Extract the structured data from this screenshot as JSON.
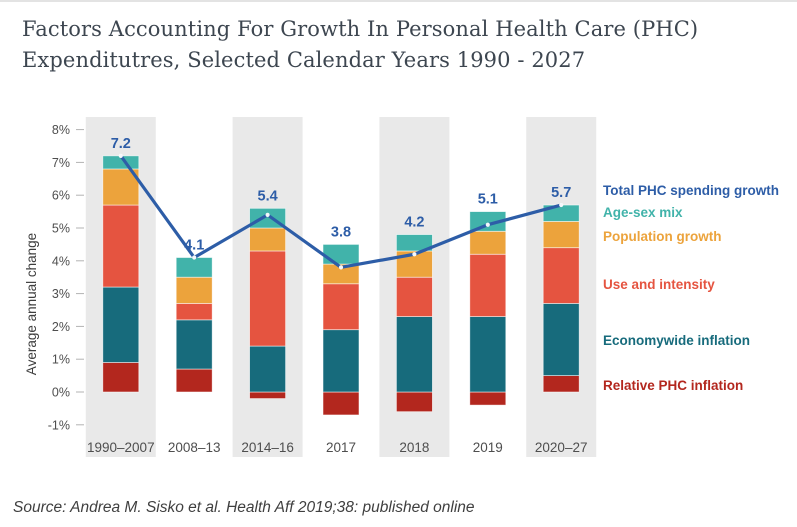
{
  "page": {
    "title_line1": "Factors Accounting For Growth In Personal Health Care (PHC)",
    "title_line2": "Expenditutres, Selected Calendar Years 1990 - 2027",
    "source": "Source: Andrea M. Sisko et al. Health Aff 2019;38: published online"
  },
  "colors": {
    "accent_blue": "#2d5da7",
    "age_sex_teal": "#41b3aa",
    "population_orange": "#eca33c",
    "use_intensity_red": "#e55440",
    "economywide_teal": "#176b7c",
    "relative_phc_red": "#b3271e",
    "column_band_gray": "#e9e9e9",
    "title_text": "#3d4650",
    "axis_text": "#4e4e4e",
    "source_text": "#3f3f3f"
  },
  "chart_data": {
    "type": "bar",
    "subtype": "stacked-bars-with-total-line",
    "title": "Factors Accounting For Growth In Personal Health Care (PHC) Expenditutres, Selected Calendar Years 1990 - 2027",
    "xlabel": "",
    "ylabel": "Average annual change",
    "y_ticks": [
      "8%",
      "7%",
      "6%",
      "5%",
      "4%",
      "3%",
      "2%",
      "1%",
      "0%",
      "-1%"
    ],
    "ylim": [
      -1.5,
      8.4
    ],
    "grid": false,
    "legend_position": "right",
    "shaded_columns": [
      0,
      2,
      4,
      6
    ],
    "categories": [
      "1990–2007",
      "2008–13",
      "2014–16",
      "2017",
      "2018",
      "2019",
      "2020–27"
    ],
    "series": [
      {
        "name": "Relative PHC inflation",
        "color": "#b3271e",
        "values": [
          0.9,
          0.7,
          -0.2,
          -0.7,
          -0.6,
          -0.4,
          0.5
        ]
      },
      {
        "name": "Economywide inflation",
        "color": "#176b7c",
        "values": [
          2.3,
          1.5,
          1.4,
          1.9,
          2.3,
          2.3,
          2.2
        ]
      },
      {
        "name": "Use and intensity",
        "color": "#e55440",
        "values": [
          2.5,
          0.5,
          2.9,
          1.4,
          1.2,
          1.9,
          1.7
        ]
      },
      {
        "name": "Population growth",
        "color": "#eca33c",
        "values": [
          1.1,
          0.8,
          0.7,
          0.6,
          0.8,
          0.7,
          0.8
        ]
      },
      {
        "name": "Age-sex mix",
        "color": "#41b3aa",
        "values": [
          0.4,
          0.6,
          0.6,
          0.6,
          0.5,
          0.6,
          0.5
        ]
      }
    ],
    "line_series": {
      "name": "Total PHC spending growth",
      "color": "#2d5da7",
      "values": [
        7.2,
        4.1,
        5.4,
        3.8,
        4.2,
        5.1,
        5.7
      ]
    }
  },
  "legend": {
    "items": [
      {
        "label": "Total PHC spending growth",
        "color": "#2d5da7"
      },
      {
        "label": "Age-sex mix",
        "color": "#41b3aa"
      },
      {
        "label": "Population growth",
        "color": "#eca33c"
      },
      {
        "label": "Use and intensity",
        "color": "#e55440"
      },
      {
        "label": "Economywide inflation",
        "color": "#176b7c"
      },
      {
        "label": "Relative PHC inflation",
        "color": "#b3271e"
      }
    ]
  }
}
